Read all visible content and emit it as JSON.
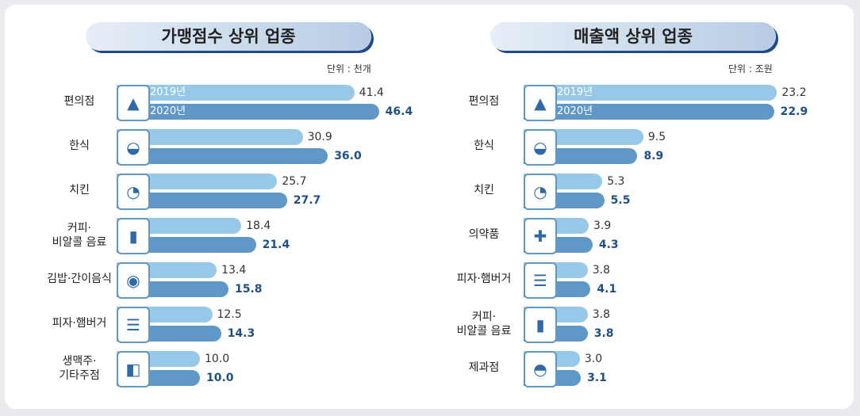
{
  "colors": {
    "y2019": "#97c8e8",
    "y2020": "#5f97c6",
    "value2020": "#1f4f86",
    "title_shadow": "#1f4a86"
  },
  "chart_data": [
    {
      "type": "bar",
      "orientation": "horizontal",
      "title": "가맹점수 상위 업종",
      "unit": "단위 : 천개",
      "categories": [
        "편의점",
        "한식",
        "치킨",
        "커피·\n비알콜 음료",
        "김밥·간이음식",
        "피자·햄버거",
        "생맥주·\n기타주점"
      ],
      "icons": [
        "convenience-store-icon",
        "bowl-icon",
        "chicken-icon",
        "drink-cup-icon",
        "gimbap-icon",
        "burger-icon",
        "beer-mug-icon"
      ],
      "series": [
        {
          "name": "2019년",
          "values": [
            41.4,
            30.9,
            25.7,
            18.4,
            13.4,
            12.5,
            10.0
          ]
        },
        {
          "name": "2020년",
          "values": [
            46.4,
            36.0,
            27.7,
            21.4,
            15.8,
            14.3,
            10.0
          ]
        }
      ]
    },
    {
      "type": "bar",
      "orientation": "horizontal",
      "title": "매출액 상위 업종",
      "unit": "단위 : 조원",
      "categories": [
        "편의점",
        "한식",
        "치킨",
        "의약품",
        "피자·햄버거",
        "커피·\n비알콜 음료",
        "제과점"
      ],
      "icons": [
        "convenience-store-icon",
        "bowl-icon",
        "chicken-icon",
        "first-aid-kit-icon",
        "burger-icon",
        "drink-cup-icon",
        "bread-icon"
      ],
      "series": [
        {
          "name": "2019년",
          "values": [
            23.2,
            9.5,
            5.3,
            3.9,
            3.8,
            3.8,
            3.0
          ]
        },
        {
          "name": "2020년",
          "values": [
            22.9,
            8.9,
            5.5,
            4.3,
            4.1,
            3.8,
            3.1
          ]
        }
      ]
    }
  ]
}
